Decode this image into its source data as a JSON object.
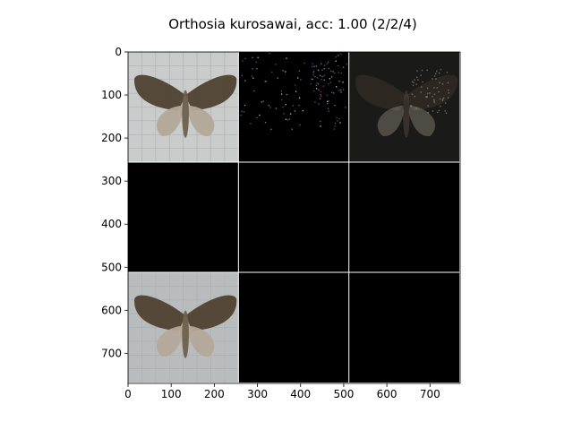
{
  "figure": {
    "title": "Orthosia kurosawai, acc: 1.00 (2/2/4)",
    "background": "#ffffff",
    "axes_color": "#000000",
    "grid_line_color": "#ffffff"
  },
  "axes": {
    "x_ticks": [
      "0",
      "100",
      "200",
      "300",
      "400",
      "500",
      "600",
      "700"
    ],
    "y_ticks": [
      "0",
      "100",
      "200",
      "300",
      "400",
      "500",
      "600",
      "700"
    ],
    "xlim": [
      0,
      770
    ],
    "ylim_inverted": [
      770,
      0
    ]
  },
  "image_grid": {
    "rows": 3,
    "cols": 3,
    "tile_size": 256,
    "cells": [
      {
        "row": 0,
        "col": 0,
        "content": "moth photo on grid paper",
        "background": "#c9ccca"
      },
      {
        "row": 0,
        "col": 1,
        "content": "sparse colored attribution noise",
        "background": "#000000"
      },
      {
        "row": 0,
        "col": 2,
        "content": "darkened moth overlay",
        "background": "#1a1a19"
      },
      {
        "row": 1,
        "col": 0,
        "content": "blank",
        "background": "#000000"
      },
      {
        "row": 1,
        "col": 1,
        "content": "blank",
        "background": "#000000"
      },
      {
        "row": 1,
        "col": 2,
        "content": "blank",
        "background": "#000000"
      },
      {
        "row": 2,
        "col": 0,
        "content": "moth photo on grid paper",
        "background": "#b9bcbd"
      },
      {
        "row": 2,
        "col": 1,
        "content": "blank",
        "background": "#000000"
      },
      {
        "row": 2,
        "col": 2,
        "content": "blank",
        "background": "#000000"
      }
    ]
  },
  "colors": {
    "moth_body": "#6f5f4c",
    "moth_wing_light": "#b3a898",
    "moth_wing_dark": "#4f4132",
    "paper_grid": "#a9adb2",
    "noise_palette": [
      "#7f7f7f",
      "#5a4f8a",
      "#a08a70",
      "#4a6b9a",
      "#c0c0c0",
      "#8a3a6a"
    ]
  }
}
